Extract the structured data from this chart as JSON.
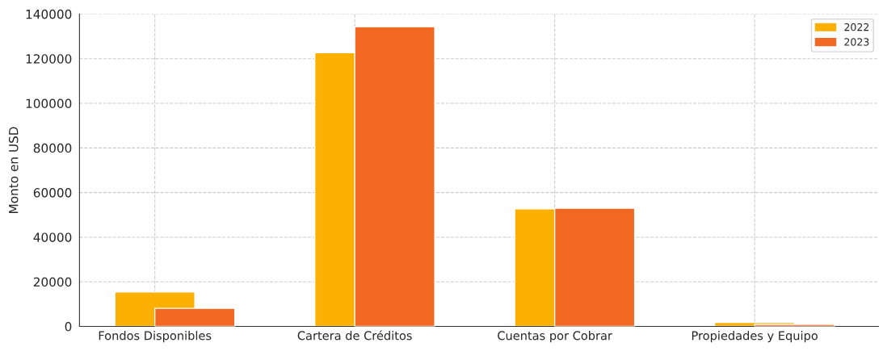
{
  "chart_data": {
    "type": "bar",
    "ylabel": "Monto en USD",
    "categories": [
      "Fondos Disponibles",
      "Cartera de Créditos",
      "Cuentas por Cobrar",
      "Propiedades y Equipo"
    ],
    "series": [
      {
        "name": "2022",
        "color": "#fbb003",
        "values": [
          15500,
          122700,
          52700,
          1800
        ]
      },
      {
        "name": "2023",
        "color": "#f26722",
        "values": [
          8100,
          134300,
          53000,
          900
        ]
      }
    ],
    "ylim": [
      0,
      140000
    ],
    "yticks": [
      0,
      20000,
      40000,
      60000,
      80000,
      100000,
      120000,
      140000
    ],
    "grid": true,
    "legend": "top right"
  }
}
